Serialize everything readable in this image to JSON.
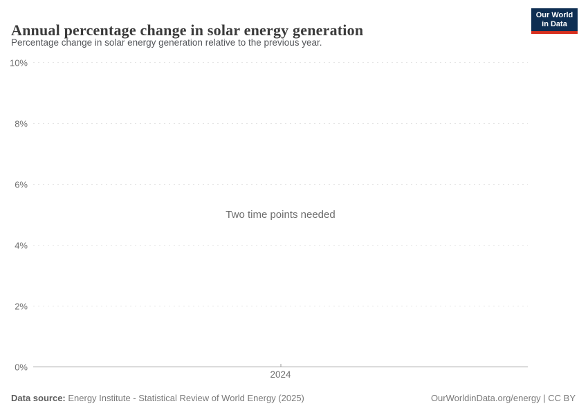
{
  "header": {
    "title": "Annual percentage change in solar energy generation",
    "subtitle": "Percentage change in solar energy generation relative to the previous year.",
    "logo": {
      "line1": "Our World",
      "line2": "in Data",
      "bg_color": "#0e2e52",
      "accent_color": "#d7301f"
    }
  },
  "chart_data": {
    "type": "line",
    "title": "Annual percentage change in solar energy generation",
    "note": "Two time points needed",
    "series": [],
    "categories": [
      2024
    ],
    "xticks": [
      "2024"
    ],
    "xtick_fractions": [
      0.5
    ],
    "yticks": [
      "0%",
      "2%",
      "4%",
      "6%",
      "8%",
      "10%"
    ],
    "ytick_values": [
      0,
      2,
      4,
      6,
      8,
      10
    ],
    "ylim": [
      0,
      10
    ],
    "grid": "horizontal-dashed",
    "gridline_color": "#e4e4e4",
    "axis_color": "#9e9e9e"
  },
  "footer": {
    "datasource_label": "Data source:",
    "datasource_text": " Energy Institute - Statistical Review of World Energy (2025)",
    "credit": "OurWorldinData.org/energy | CC BY"
  }
}
